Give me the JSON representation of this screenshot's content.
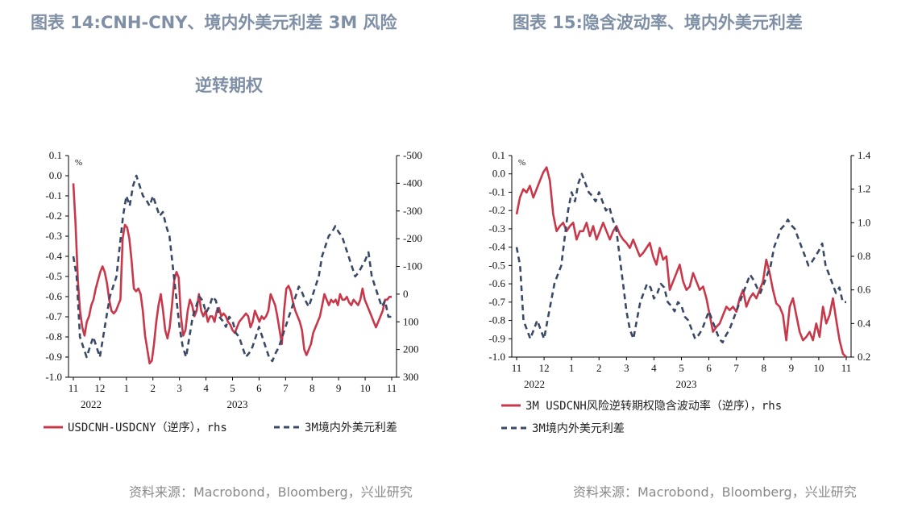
{
  "left": {
    "title_line1": "图表 14:CNH-CNY、境内外美元利差 3M 风险",
    "title_line2": "逆转期权",
    "source": "资料来源：Macrobond，Bloomberg，兴业研究",
    "legend": [
      "USDCNH-USDCNY（逆序），rhs",
      "3M境内外美元利差"
    ],
    "unit": "%",
    "year_labels": [
      "2022",
      "2023"
    ]
  },
  "right": {
    "title": "图表 15:隐含波动率、境内外美元利差",
    "source": "资料来源：Macrobond，Bloomberg，兴业研究",
    "legend": [
      "3M USDCNH风险逆转期权隐含波动率（逆序），rhs",
      "3M境内外美元利差"
    ],
    "unit": "%",
    "year_labels": [
      "2022",
      "2023"
    ]
  },
  "colors": {
    "red": "#c8384a",
    "navy": "#3a4a66",
    "title": "#7f8fa6"
  },
  "chart_data": [
    {
      "type": "line",
      "x_ticks": [
        "11",
        "12",
        "1",
        "2",
        "3",
        "4",
        "5",
        "6",
        "7",
        "8",
        "9",
        "10",
        "11"
      ],
      "ylabel_left": "%",
      "ylim_left": [
        -1.0,
        0.1
      ],
      "yticks_left": [
        "0.1",
        "0.0",
        "-0.1",
        "-0.2",
        "-0.3",
        "-0.4",
        "-0.5",
        "-0.6",
        "-0.7",
        "-0.8",
        "-0.9",
        "-1.0"
      ],
      "ylim_right": [
        300,
        -500
      ],
      "yticks_right": [
        "-500",
        "-400",
        "-300",
        "-200",
        "-100",
        "0",
        "100",
        "200",
        "300"
      ],
      "series": [
        {
          "name": "USDCNH-USDCNY（逆序），rhs",
          "axis": "right",
          "color": "#c8384a",
          "values": [
            -400,
            -250,
            -50,
            60,
            120,
            150,
            100,
            80,
            40,
            20,
            -20,
            -50,
            -80,
            -100,
            -80,
            -40,
            20,
            60,
            70,
            60,
            40,
            20,
            -200,
            -250,
            -240,
            -200,
            -120,
            -20,
            -10,
            -20,
            0,
            60,
            150,
            200,
            250,
            240,
            180,
            100,
            40,
            0,
            60,
            130,
            160,
            120,
            40,
            -50,
            -80,
            -60,
            80,
            150,
            130,
            60,
            20,
            40,
            80,
            60,
            0,
            60,
            80,
            60,
            100,
            80,
            80,
            100,
            60,
            50,
            80,
            70,
            80,
            100,
            110,
            130,
            140,
            120,
            100,
            90,
            80,
            70,
            80,
            120,
            100,
            60,
            80,
            100,
            80,
            90,
            80,
            60,
            0,
            20,
            40,
            80,
            130,
            180,
            60,
            -20,
            -30,
            -10,
            30,
            60,
            80,
            100,
            130,
            200,
            220,
            200,
            180,
            140,
            120,
            100,
            80,
            40,
            0,
            20,
            40,
            20,
            30,
            20,
            40,
            0,
            20,
            20,
            10,
            30,
            40,
            20,
            30,
            40,
            20,
            -20,
            20,
            40,
            60,
            80,
            100,
            120,
            100,
            80,
            60,
            20,
            20,
            10,
            10
          ]
        },
        {
          "name": "3M境内外美元利差",
          "axis": "left",
          "color": "#3a4a66",
          "values": [
            -0.4,
            -0.5,
            -0.8,
            -0.85,
            -0.9,
            -0.85,
            -0.8,
            -0.85,
            -0.9,
            -0.8,
            -0.7,
            -0.6,
            -0.55,
            -0.5,
            -0.35,
            -0.2,
            -0.1,
            -0.15,
            -0.05,
            0.0,
            -0.05,
            -0.1,
            -0.12,
            -0.15,
            -0.1,
            -0.15,
            -0.2,
            -0.18,
            -0.25,
            -0.3,
            -0.45,
            -0.6,
            -0.75,
            -0.85,
            -0.9,
            -0.8,
            -0.7,
            -0.65,
            -0.6,
            -0.62,
            -0.68,
            -0.65,
            -0.6,
            -0.62,
            -0.7,
            -0.72,
            -0.75,
            -0.7,
            -0.72,
            -0.78,
            -0.8,
            -0.85,
            -0.9,
            -0.88,
            -0.85,
            -0.8,
            -0.75,
            -0.8,
            -0.85,
            -0.9,
            -0.92,
            -0.88,
            -0.85,
            -0.8,
            -0.75,
            -0.7,
            -0.65,
            -0.6,
            -0.55,
            -0.58,
            -0.62,
            -0.65,
            -0.6,
            -0.55,
            -0.5,
            -0.4,
            -0.35,
            -0.3,
            -0.28,
            -0.25,
            -0.28,
            -0.3,
            -0.35,
            -0.4,
            -0.45,
            -0.5,
            -0.48,
            -0.45,
            -0.42,
            -0.38,
            -0.5,
            -0.55,
            -0.6,
            -0.65,
            -0.62,
            -0.7,
            -0.7
          ]
        }
      ]
    },
    {
      "type": "line",
      "x_ticks": [
        "11",
        "12",
        "1",
        "2",
        "3",
        "4",
        "5",
        "6",
        "7",
        "8",
        "9",
        "10",
        "11"
      ],
      "ylabel_left": "%",
      "ylim_left": [
        -1.0,
        0.1
      ],
      "yticks_left": [
        "0.1",
        "0.0",
        "-0.1",
        "-0.2",
        "-0.3",
        "-0.4",
        "-0.5",
        "-0.6",
        "-0.7",
        "-0.8",
        "-0.9",
        "-1.0"
      ],
      "ylim_right": [
        0.2,
        1.4
      ],
      "yticks_right": [
        "0.2",
        "0.4",
        "0.6",
        "0.8",
        "1.0",
        "1.2",
        "1.4"
      ],
      "series": [
        {
          "name": "3M USDCNH风险逆转期权隐含波动率（逆序），rhs",
          "axis": "right",
          "color": "#c8384a",
          "values": [
            1.05,
            1.15,
            1.2,
            1.18,
            1.22,
            1.15,
            1.2,
            1.25,
            1.3,
            1.33,
            1.25,
            1.05,
            0.95,
            0.98,
            1.0,
            0.95,
            0.98,
            1.0,
            0.9,
            0.95,
            0.95,
            1.0,
            0.92,
            0.98,
            0.9,
            0.95,
            1.0,
            0.95,
            0.9,
            0.95,
            0.98,
            0.93,
            0.9,
            0.88,
            0.85,
            0.9,
            0.85,
            0.8,
            0.82,
            0.85,
            0.88,
            0.8,
            0.75,
            0.85,
            0.78,
            0.8,
            0.6,
            0.65,
            0.7,
            0.75,
            0.65,
            0.6,
            0.62,
            0.7,
            0.65,
            0.6,
            0.62,
            0.55,
            0.45,
            0.35,
            0.38,
            0.4,
            0.45,
            0.5,
            0.48,
            0.5,
            0.47,
            0.55,
            0.6,
            0.5,
            0.55,
            0.58,
            0.55,
            0.6,
            0.65,
            0.78,
            0.7,
            0.6,
            0.52,
            0.5,
            0.45,
            0.3,
            0.5,
            0.55,
            0.45,
            0.35,
            0.3,
            0.32,
            0.35,
            0.3,
            0.4,
            0.32,
            0.5,
            0.4,
            0.45,
            0.55,
            0.42,
            0.3,
            0.22,
            0.2
          ]
        },
        {
          "name": "3M境内外美元利差",
          "axis": "left",
          "color": "#3a4a66",
          "values": [
            -0.4,
            -0.5,
            -0.8,
            -0.85,
            -0.9,
            -0.85,
            -0.8,
            -0.85,
            -0.9,
            -0.8,
            -0.7,
            -0.6,
            -0.55,
            -0.5,
            -0.35,
            -0.2,
            -0.1,
            -0.15,
            -0.05,
            0.0,
            -0.05,
            -0.1,
            -0.12,
            -0.15,
            -0.1,
            -0.15,
            -0.2,
            -0.18,
            -0.25,
            -0.3,
            -0.45,
            -0.6,
            -0.75,
            -0.85,
            -0.9,
            -0.8,
            -0.7,
            -0.65,
            -0.6,
            -0.62,
            -0.68,
            -0.65,
            -0.6,
            -0.62,
            -0.7,
            -0.72,
            -0.75,
            -0.7,
            -0.72,
            -0.78,
            -0.8,
            -0.85,
            -0.9,
            -0.88,
            -0.85,
            -0.8,
            -0.75,
            -0.8,
            -0.85,
            -0.9,
            -0.92,
            -0.88,
            -0.85,
            -0.8,
            -0.75,
            -0.7,
            -0.65,
            -0.6,
            -0.55,
            -0.58,
            -0.62,
            -0.65,
            -0.6,
            -0.55,
            -0.5,
            -0.4,
            -0.35,
            -0.3,
            -0.28,
            -0.25,
            -0.28,
            -0.3,
            -0.35,
            -0.4,
            -0.45,
            -0.5,
            -0.48,
            -0.45,
            -0.42,
            -0.38,
            -0.5,
            -0.55,
            -0.6,
            -0.65,
            -0.62,
            -0.7,
            -0.7
          ]
        }
      ]
    }
  ]
}
